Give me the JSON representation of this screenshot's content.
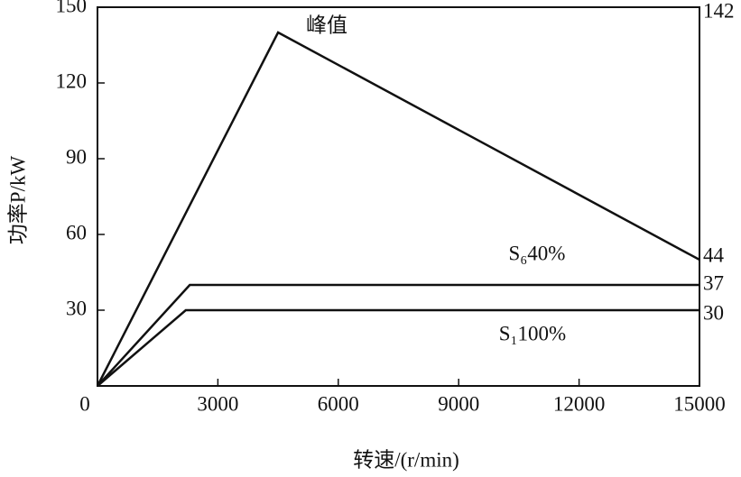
{
  "chart_data": {
    "type": "line",
    "x_label": "转速/(r/min)",
    "y_label": "功率P/kW",
    "xlim": [
      0,
      15000
    ],
    "xticks": [
      0,
      3000,
      6000,
      9000,
      12000,
      15000
    ],
    "ylim": [
      0,
      150
    ],
    "yticks": [
      30,
      60,
      90,
      120,
      150
    ],
    "series": [
      {
        "name": "峰值",
        "color": "#111111",
        "x": [
          0,
          4500,
          15000
        ],
        "values": [
          0,
          140,
          50
        ]
      },
      {
        "name": "S₆40%",
        "color": "#111111",
        "x": [
          0,
          2300,
          15000
        ],
        "values": [
          0,
          40,
          40
        ]
      },
      {
        "name": "S₁100%",
        "color": "#111111",
        "x": [
          0,
          2200,
          15000
        ],
        "values": [
          0,
          30,
          30
        ]
      }
    ],
    "right_labels": [
      "142",
      "44",
      "37",
      "30"
    ]
  }
}
